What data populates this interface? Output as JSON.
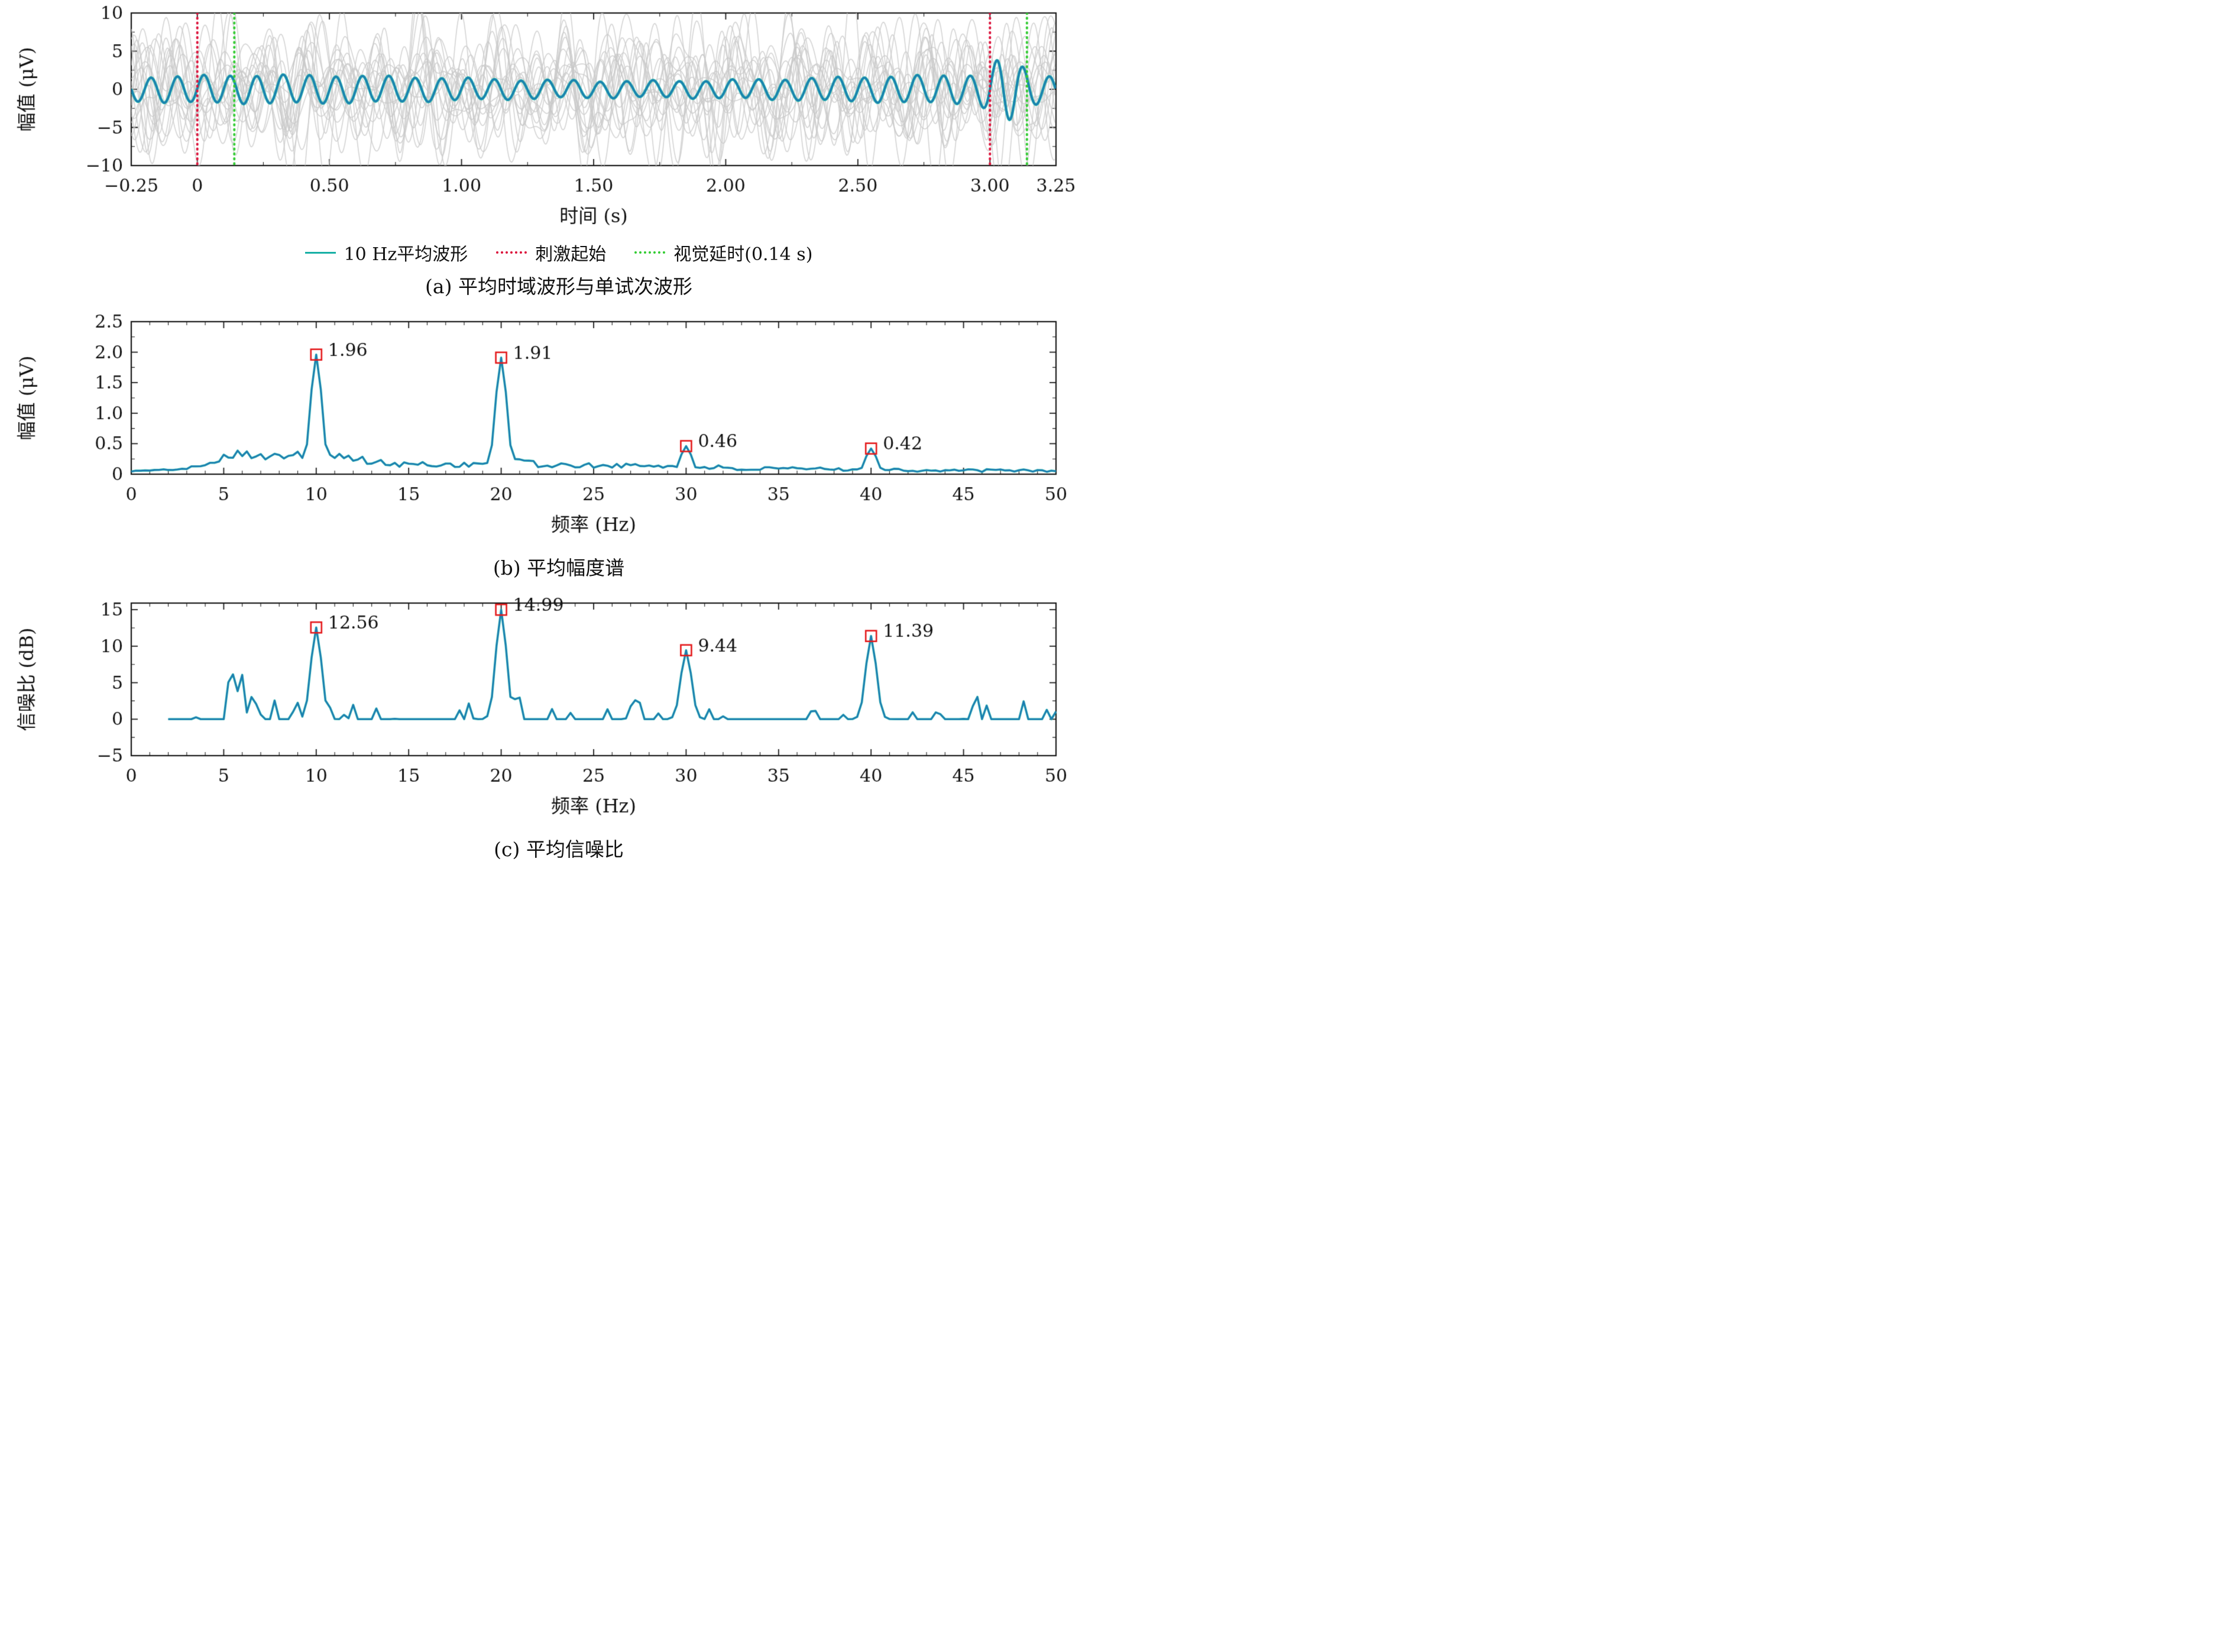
{
  "page": {
    "background": "#ffffff",
    "text_color": "#111111"
  },
  "chart_data": [
    {
      "id": "a",
      "type": "line",
      "caption": "(a) 平均时域波形与单试次波形",
      "xlabel": "时间 (s)",
      "ylabel": "幅值 (μV)",
      "xlim": [
        -0.25,
        3.25
      ],
      "ylim": [
        -10,
        10
      ],
      "xticks": [
        -0.25,
        0,
        0.5,
        1.0,
        1.5,
        2.0,
        2.5,
        3.0,
        3.25
      ],
      "xtick_labels": [
        "−0.25",
        "0",
        "0.50",
        "1.00",
        "1.50",
        "2.00",
        "2.50",
        "3.00",
        "3.25"
      ],
      "yticks": [
        -10,
        -5,
        0,
        5,
        10
      ],
      "ytick_labels": [
        "−10",
        "−5",
        "0",
        "5",
        "10"
      ],
      "minor_x": 0.25,
      "minor_y": 2.5,
      "legend": [
        {
          "label": "10 Hz平均波形",
          "style": "solid",
          "color": "#17b0a5"
        },
        {
          "label": "刺激起始",
          "style": "dotted",
          "color": "#dc143c"
        },
        {
          "label": "视觉延时(0.14 s)",
          "style": "dotted",
          "color": "#33cc33"
        }
      ],
      "vlines": [
        {
          "x": 0,
          "style": "dotted",
          "color": "#dc143c",
          "name": "刺激起始"
        },
        {
          "x": 3.0,
          "style": "dotted",
          "color": "#dc143c",
          "name": "刺激起始"
        },
        {
          "x": 0.14,
          "style": "dotted",
          "color": "#33cc33",
          "name": "视觉延时"
        },
        {
          "x": 3.14,
          "style": "dotted",
          "color": "#33cc33",
          "name": "视觉延时"
        }
      ],
      "series": {
        "average": {
          "name": "10 Hz平均波形",
          "frequency_hz": 10,
          "base_amplitude_uv": 1.5,
          "burst_time_s": 3.06,
          "burst_extra_amplitude_uv": 2.4,
          "color": "#1f77b4",
          "underlay_color": "#17b0a5"
        },
        "single_trials": {
          "count": 18,
          "color": "#c9c9c9",
          "amplitude_range_uv": [
            -10,
            10
          ],
          "seed": 7
        }
      }
    },
    {
      "id": "b",
      "type": "line",
      "caption": "(b) 平均幅度谱",
      "xlabel": "频率 (Hz)",
      "ylabel": "幅值 (μV)",
      "xlim": [
        0,
        50
      ],
      "ylim": [
        0,
        2.5
      ],
      "xticks": [
        0,
        5,
        10,
        15,
        20,
        25,
        30,
        35,
        40,
        45,
        50
      ],
      "yticks": [
        0,
        0.5,
        1.0,
        1.5,
        2.0,
        2.5
      ],
      "ytick_labels": [
        "0",
        "0.5",
        "1.0",
        "1.5",
        "2.0",
        "2.5"
      ],
      "minor_x": 1,
      "minor_y": 0.25,
      "line_color": "#1f77b4",
      "underlay_color": "#17b0a5",
      "marker_color": "#e41a1c",
      "marker_shape": "open-square",
      "noise_seed": 101,
      "data_start_hz": 0,
      "peaks": [
        {
          "freq_hz": 10,
          "value": 1.96,
          "label": "1.96"
        },
        {
          "freq_hz": 20,
          "value": 1.91,
          "label": "1.91"
        },
        {
          "freq_hz": 30,
          "value": 0.46,
          "label": "0.46"
        },
        {
          "freq_hz": 40,
          "value": 0.42,
          "label": "0.42"
        }
      ]
    },
    {
      "id": "c",
      "type": "line",
      "caption": "(c) 平均信噪比",
      "xlabel": "频率 (Hz)",
      "ylabel": "信噪比 (dB)",
      "xlim": [
        0,
        50
      ],
      "ylim": [
        -5,
        15.9
      ],
      "xticks": [
        0,
        5,
        10,
        15,
        20,
        25,
        30,
        35,
        40,
        45,
        50
      ],
      "yticks": [
        -5,
        0,
        5,
        10,
        15
      ],
      "ytick_labels": [
        "−5",
        "0",
        "5",
        "10",
        "15"
      ],
      "minor_x": 1,
      "minor_y": 2.5,
      "line_color": "#1f77b4",
      "underlay_color": "#17b0a5",
      "marker_color": "#e41a1c",
      "marker_shape": "open-square",
      "noise_seed": 202,
      "data_start_hz": 2,
      "peaks": [
        {
          "freq_hz": 10,
          "value": 12.56,
          "label": "12.56"
        },
        {
          "freq_hz": 20,
          "value": 14.99,
          "label": "14.99"
        },
        {
          "freq_hz": 30,
          "value": 9.44,
          "label": "9.44"
        },
        {
          "freq_hz": 40,
          "value": 11.39,
          "label": "11.39"
        }
      ]
    }
  ]
}
